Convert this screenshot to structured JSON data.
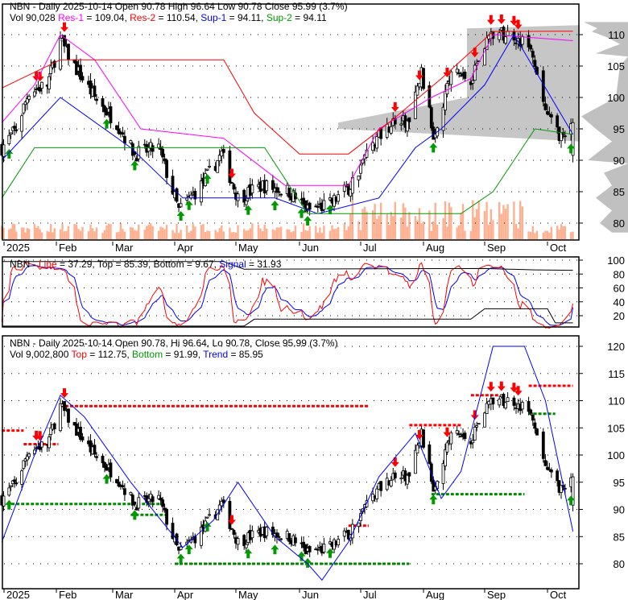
{
  "top_panel": {
    "line1": "NBN - Daily 2025-10-14 Open 90.78  High 96.64  Low 90.78  Close 95.99 (3.7%)",
    "vol_label": "Vol 90,028",
    "res1_label": "Res-1",
    "res1_value": " = 109.04, ",
    "res2_label": "Res-2",
    "res2_value": " = 110.54, ",
    "sup1_label": "Sup-1",
    "sup1_value": " = 94.11, ",
    "sup2_label": "Sup-2",
    "sup2_value": " = 94.11"
  },
  "middle_panel": {
    "symbol": "NBN - ",
    "line_label": "Line",
    "line_value": " = 37.29, ",
    "top_label": "Top",
    "top_value": " = 85.39, ",
    "bottom_label": "Bottom",
    "bottom_value": " = 9.67, ",
    "signal_label": "Signal",
    "signal_value": " = 31.93"
  },
  "bottom_panel": {
    "line1": "NBN - Daily 2025-10-14 Open 90.78, Hi 96.64, Lo 90.78, Close 95.99 (3.7%)",
    "vol_label": "Vol 9,002,800",
    "top_label": "Top",
    "top_value": " = 112.75, ",
    "bottom_label": "Bottom",
    "bottom_value": " = 91.99, ",
    "trend_label": "Trend",
    "trend_value": " = 85.95"
  },
  "colors": {
    "up": "#ffffff",
    "down": "#000000",
    "res1": "#ff00ff",
    "res2": "#ff0000",
    "sup1": "#0000ff",
    "sup2": "#009900",
    "volume": "#ffb090",
    "profile": "#c0c0c0",
    "arrow_up": "#009900",
    "arrow_down": "#ff0000"
  },
  "chart_data": [
    {
      "type": "candlestick",
      "title": "NBN - Daily 2025-10-14",
      "x_ticks": [
        "2025",
        "Feb",
        "Mar",
        "Apr",
        "May",
        "Jun",
        "Jul",
        "Aug",
        "Sep",
        "Oct"
      ],
      "y_ticks": [
        80,
        85,
        90,
        95,
        100,
        105,
        110
      ],
      "ylim": [
        78.5,
        112.5
      ],
      "grid": true,
      "close_keypoints": [
        [
          "2025-01-02",
          92
        ],
        [
          "2025-01-10",
          95
        ],
        [
          "2025-01-17",
          101
        ],
        [
          "2025-01-27",
          102
        ],
        [
          "2025-02-03",
          109
        ],
        [
          "2025-02-10",
          105
        ],
        [
          "2025-02-20",
          100
        ],
        [
          "2025-03-03",
          96
        ],
        [
          "2025-03-12",
          91
        ],
        [
          "2025-03-24",
          92
        ],
        [
          "2025-04-03",
          82
        ],
        [
          "2025-04-14",
          86
        ],
        [
          "2025-04-24",
          91
        ],
        [
          "2025-05-02",
          84
        ],
        [
          "2025-05-14",
          86
        ],
        [
          "2025-05-27",
          85
        ],
        [
          "2025-06-05",
          82
        ],
        [
          "2025-06-16",
          83
        ],
        [
          "2025-06-26",
          86
        ],
        [
          "2025-07-07",
          93
        ],
        [
          "2025-07-16",
          96
        ],
        [
          "2025-07-25",
          96
        ],
        [
          "2025-07-31",
          104
        ],
        [
          "2025-08-06",
          94
        ],
        [
          "2025-08-15",
          104
        ],
        [
          "2025-08-25",
          103
        ],
        [
          "2025-09-03",
          110
        ],
        [
          "2025-09-15",
          110
        ],
        [
          "2025-09-22",
          108
        ],
        [
          "2025-10-01",
          97
        ],
        [
          "2025-10-10",
          93
        ],
        [
          "2025-10-14",
          95.99
        ]
      ],
      "series": [
        {
          "name": "Res-1",
          "color": "#ff00ff",
          "points": [
            [
              "2025-01-02",
              96
            ],
            [
              "2025-01-20",
              102
            ],
            [
              "2025-02-03",
              110
            ],
            [
              "2025-02-20",
              106
            ],
            [
              "2025-03-15",
              95
            ],
            [
              "2025-04-25",
              93.5
            ],
            [
              "2025-05-05",
              91
            ],
            [
              "2025-05-25",
              86
            ],
            [
              "2025-06-25",
              86
            ],
            [
              "2025-07-10",
              95
            ],
            [
              "2025-08-05",
              100
            ],
            [
              "2025-08-25",
              103
            ],
            [
              "2025-09-05",
              110
            ],
            [
              "2025-10-14",
              109.04
            ]
          ]
        },
        {
          "name": "Res-2",
          "color": "#ff0000",
          "points": [
            [
              "2025-01-02",
              101.5
            ],
            [
              "2025-02-03",
              106
            ],
            [
              "2025-04-25",
              106
            ],
            [
              "2025-05-10",
              97.5
            ],
            [
              "2025-06-01",
              91
            ],
            [
              "2025-06-25",
              91
            ],
            [
              "2025-07-15",
              96
            ],
            [
              "2025-08-10",
              103
            ],
            [
              "2025-09-05",
              110.5
            ],
            [
              "2025-10-14",
              110.54
            ]
          ]
        },
        {
          "name": "Sup-1",
          "color": "#0000ff",
          "points": [
            [
              "2025-01-02",
              90
            ],
            [
              "2025-02-03",
              100
            ],
            [
              "2025-03-10",
              92
            ],
            [
              "2025-04-05",
              84
            ],
            [
              "2025-05-20",
              84
            ],
            [
              "2025-06-10",
              81.5
            ],
            [
              "2025-07-10",
              84
            ],
            [
              "2025-07-28",
              92
            ],
            [
              "2025-08-10",
              95
            ],
            [
              "2025-09-01",
              102
            ],
            [
              "2025-09-15",
              110
            ],
            [
              "2025-10-14",
              94.11
            ]
          ]
        },
        {
          "name": "Sup-2",
          "color": "#009900",
          "points": [
            [
              "2025-01-02",
              84
            ],
            [
              "2025-01-20",
              92
            ],
            [
              "2025-05-15",
              92
            ],
            [
              "2025-06-05",
              81.5
            ],
            [
              "2025-08-20",
              81.5
            ],
            [
              "2025-09-05",
              85
            ],
            [
              "2025-09-25",
              95
            ],
            [
              "2025-10-14",
              94.11
            ]
          ]
        }
      ],
      "arrows": [
        [
          "2025-01-06",
          "up"
        ],
        [
          "2025-01-21",
          "down"
        ],
        [
          "2025-01-23",
          "down"
        ],
        [
          "2025-02-05",
          "down"
        ],
        [
          "2025-02-26",
          "up"
        ],
        [
          "2025-03-12",
          "up"
        ],
        [
          "2025-04-04",
          "up"
        ],
        [
          "2025-04-08",
          "up"
        ],
        [
          "2025-04-17",
          "up"
        ],
        [
          "2025-04-29",
          "down"
        ],
        [
          "2025-05-07",
          "up"
        ],
        [
          "2025-05-20",
          "up"
        ],
        [
          "2025-06-02",
          "up"
        ],
        [
          "2025-06-05",
          "up"
        ],
        [
          "2025-06-16",
          "up"
        ],
        [
          "2025-07-18",
          "down"
        ],
        [
          "2025-07-30",
          "down"
        ],
        [
          "2025-08-06",
          "up"
        ],
        [
          "2025-08-13",
          "down"
        ],
        [
          "2025-08-27",
          "down"
        ],
        [
          "2025-09-04",
          "down"
        ],
        [
          "2025-09-09",
          "down"
        ],
        [
          "2025-09-15",
          "down"
        ],
        [
          "2025-09-17",
          "down"
        ],
        [
          "2025-10-13",
          "up"
        ]
      ]
    },
    {
      "type": "line",
      "y_ticks": [
        20,
        40,
        60,
        80,
        100
      ],
      "ylim": [
        0,
        105
      ],
      "series": [
        {
          "name": "Line",
          "color": "#ff0000",
          "last": 37.29
        },
        {
          "name": "Signal",
          "color": "#0000ff",
          "last": 31.93
        },
        {
          "name": "Top",
          "color": "#000000",
          "points": [
            [
              "2025-01-02",
              98
            ],
            [
              "2025-04-25",
              98
            ],
            [
              "2025-05-05",
              87
            ],
            [
              "2025-09-01",
              88
            ],
            [
              "2025-09-25",
              86
            ],
            [
              "2025-10-14",
              85.39
            ]
          ]
        },
        {
          "name": "Bottom",
          "color": "#000000",
          "points": [
            [
              "2025-01-02",
              5
            ],
            [
              "2025-05-05",
              5
            ],
            [
              "2025-05-10",
              15
            ],
            [
              "2025-08-25",
              15
            ],
            [
              "2025-09-01",
              30
            ],
            [
              "2025-10-01",
              30
            ],
            [
              "2025-10-05",
              9.67
            ],
            [
              "2025-10-14",
              9.67
            ]
          ]
        }
      ]
    },
    {
      "type": "candlestick",
      "y_ticks": [
        80,
        85,
        90,
        95,
        100,
        105,
        110,
        115,
        120
      ],
      "ylim": [
        75.5,
        122
      ],
      "series": [
        {
          "name": "Trend",
          "color": "#0000ff",
          "points": [
            [
              "2025-01-02",
              84
            ],
            [
              "2025-01-20",
              100
            ],
            [
              "2025-02-03",
              111
            ],
            [
              "2025-02-15",
              107
            ],
            [
              "2025-03-10",
              95
            ],
            [
              "2025-04-05",
              83
            ],
            [
              "2025-04-20",
              88
            ],
            [
              "2025-05-02",
              95
            ],
            [
              "2025-05-20",
              85
            ],
            [
              "2025-06-05",
              80
            ],
            [
              "2025-06-12",
              77
            ],
            [
              "2025-06-25",
              84
            ],
            [
              "2025-07-10",
              96
            ],
            [
              "2025-07-28",
              104
            ],
            [
              "2025-08-10",
              92
            ],
            [
              "2025-08-20",
              97
            ],
            [
              "2025-09-05",
              120
            ],
            [
              "2025-09-20",
              120
            ],
            [
              "2025-09-30",
              110
            ],
            [
              "2025-10-14",
              85.95
            ]
          ]
        }
      ],
      "resistance_levels": [
        [
          "2025-01-02",
          "2025-01-14",
          104.5
        ],
        [
          "2025-01-14",
          "2025-02-02",
          102
        ],
        [
          "2025-02-03",
          "2025-07-05",
          109
        ],
        [
          "2025-06-25",
          "2025-07-05",
          87
        ],
        [
          "2025-07-25",
          "2025-08-20",
          105.5
        ],
        [
          "2025-08-25",
          "2025-09-08",
          111
        ],
        [
          "2025-09-22",
          "2025-10-14",
          112.75
        ]
      ],
      "support_levels": [
        [
          "2025-01-02",
          "2025-03-25",
          91
        ],
        [
          "2025-03-10",
          "2025-03-28",
          89
        ],
        [
          "2025-04-01",
          "2025-07-25",
          80
        ],
        [
          "2025-08-05",
          "2025-09-20",
          92.8
        ],
        [
          "2025-09-22",
          "2025-10-05",
          107.6
        ]
      ]
    }
  ]
}
